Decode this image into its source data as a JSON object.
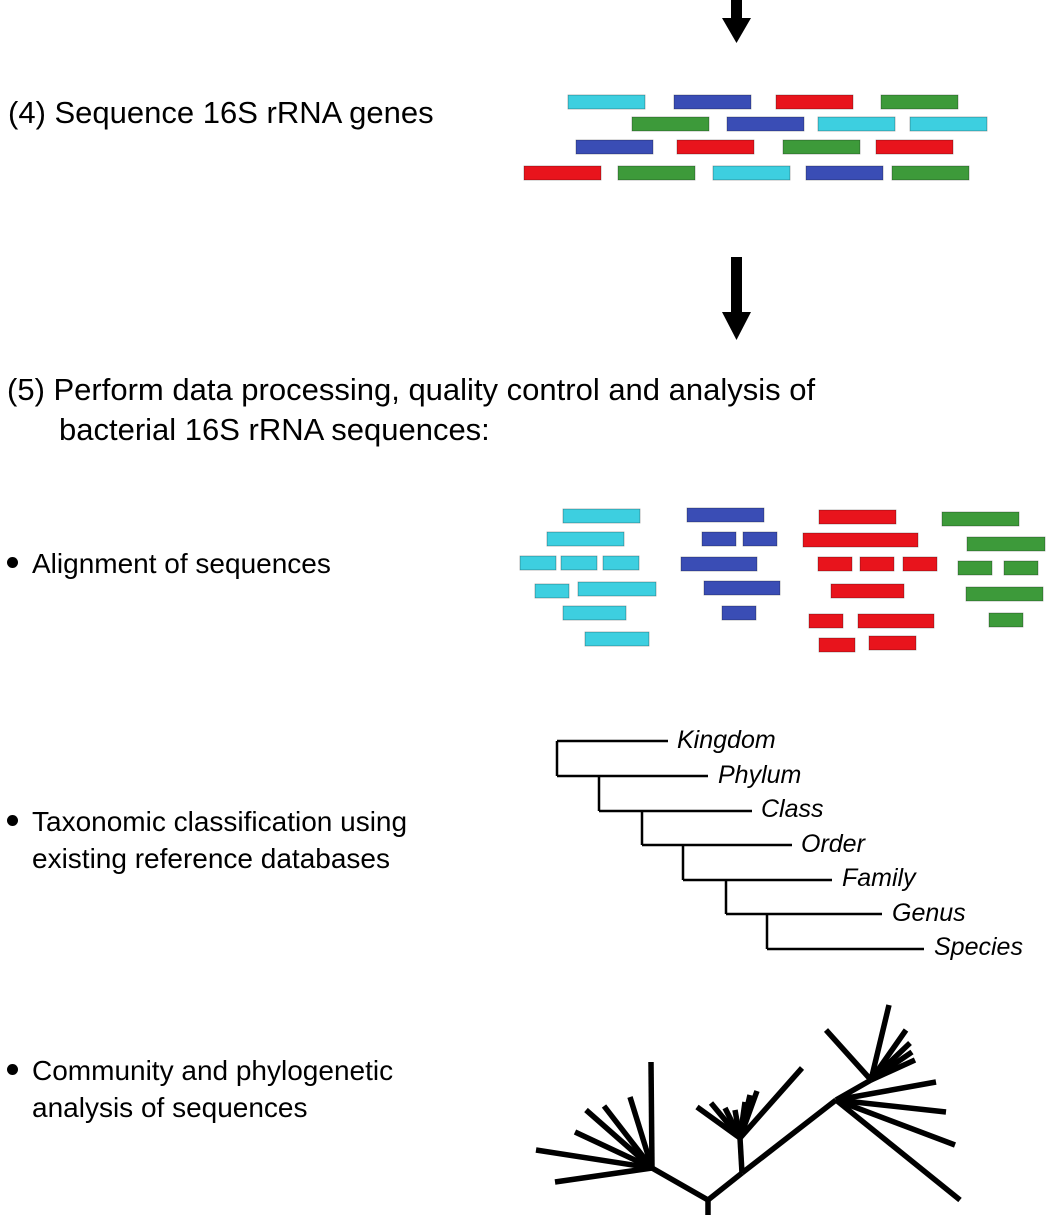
{
  "steps": {
    "step4": "(4) Sequence 16S rRNA genes",
    "step5_line1": "(5) Perform data processing, quality control and analysis of",
    "step5_line2": "bacterial 16S rRNA sequences:"
  },
  "bullets": {
    "alignment": "Alignment of sequences",
    "taxonomy_line1": "Taxonomic classification using",
    "taxonomy_line2": "existing reference databases",
    "community_line1": "Community and phylogenetic",
    "community_line2": "analysis of sequences"
  },
  "taxonomy_ranks": [
    "Kingdom",
    "Phylum",
    "Class",
    "Order",
    "Family",
    "Genus",
    "Species"
  ],
  "colors": {
    "cyan": "#3dcfe0",
    "blue": "#3a4db5",
    "red": "#e8141c",
    "green": "#3d9a3a",
    "arrow": "#000000"
  },
  "reads_row_colors": [
    [
      "cyan",
      "blue",
      "red",
      "green"
    ],
    [
      "green",
      "blue",
      "cyan",
      "cyan"
    ],
    [
      "blue",
      "red",
      "green",
      "red"
    ],
    [
      "red",
      "green",
      "cyan",
      "blue",
      "green"
    ]
  ]
}
